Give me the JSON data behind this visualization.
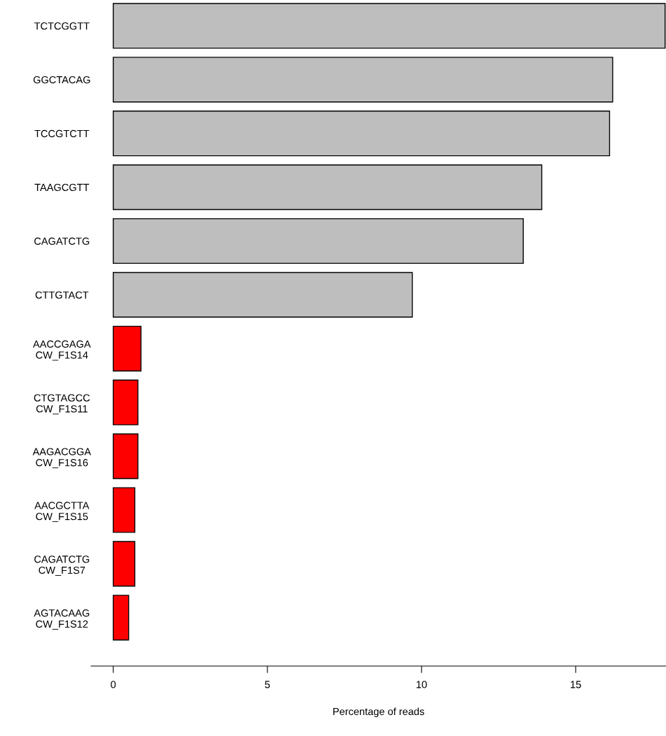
{
  "chart_data": {
    "type": "bar",
    "orientation": "horizontal",
    "xlabel": "Percentage of reads",
    "categories": [
      "TCTCGGTT",
      "GGCTACAG",
      "TCCGTCTT",
      "TAAGCGTT",
      "CAGATCTG",
      "CTTGTACT",
      "AACCGAGA\nCW_F1S14",
      "CTGTAGCC\nCW_F1S11",
      "AAGACGGA\nCW_F1S16",
      "AACGCTTA\nCW_F1S15",
      "CAGATCTG\nCW_F1S7",
      "AGTACAAG\nCW_F1S12"
    ],
    "values": [
      17.9,
      16.2,
      16.1,
      13.9,
      13.3,
      9.7,
      0.9,
      0.8,
      0.8,
      0.7,
      0.7,
      0.5
    ],
    "colors": [
      "#bebebe",
      "#bebebe",
      "#bebebe",
      "#bebebe",
      "#bebebe",
      "#bebebe",
      "#ff0000",
      "#ff0000",
      "#ff0000",
      "#ff0000",
      "#ff0000",
      "#ff0000"
    ],
    "xlim": [
      -0.72,
      17.93
    ],
    "xticks": [
      0,
      5,
      10,
      15
    ],
    "grid": false,
    "legend": false
  }
}
